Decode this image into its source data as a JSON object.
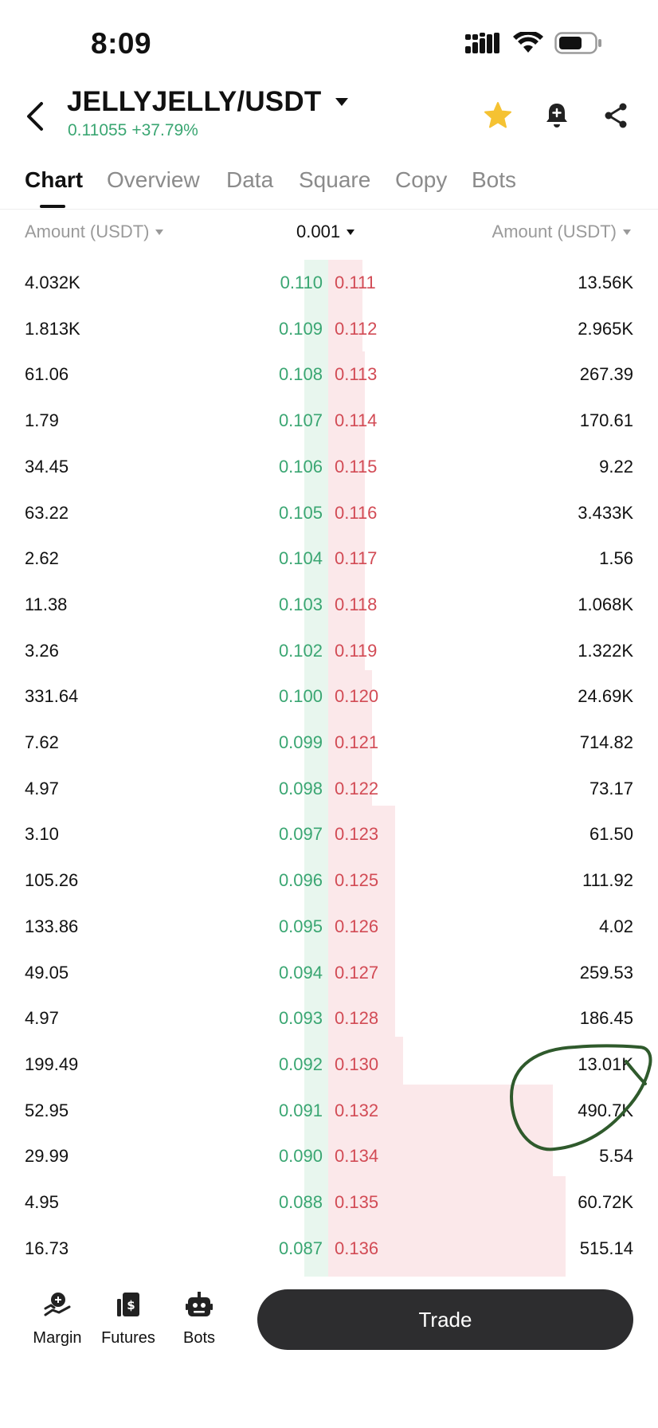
{
  "status_bar": {
    "time": "8:09"
  },
  "header": {
    "pair": "JELLYJELLY/USDT",
    "last_price": "0.11055",
    "change": "+37.79%"
  },
  "tabs": [
    {
      "label": "Chart",
      "active": true
    },
    {
      "label": "Overview",
      "active": false
    },
    {
      "label": "Data",
      "active": false
    },
    {
      "label": "Square",
      "active": false
    },
    {
      "label": "Copy",
      "active": false
    },
    {
      "label": "Bots",
      "active": false
    }
  ],
  "order_book": {
    "left_label": "Amount (USDT)",
    "right_label": "Amount (USDT)",
    "precision": "0.001",
    "rows": [
      {
        "bid_amount": "4.032K",
        "bid_price": "0.110",
        "ask_price": "0.111",
        "ask_amount": "13.56K"
      },
      {
        "bid_amount": "1.813K",
        "bid_price": "0.109",
        "ask_price": "0.112",
        "ask_amount": "2.965K"
      },
      {
        "bid_amount": "61.06",
        "bid_price": "0.108",
        "ask_price": "0.113",
        "ask_amount": "267.39"
      },
      {
        "bid_amount": "1.79",
        "bid_price": "0.107",
        "ask_price": "0.114",
        "ask_amount": "170.61"
      },
      {
        "bid_amount": "34.45",
        "bid_price": "0.106",
        "ask_price": "0.115",
        "ask_amount": "9.22"
      },
      {
        "bid_amount": "63.22",
        "bid_price": "0.105",
        "ask_price": "0.116",
        "ask_amount": "3.433K"
      },
      {
        "bid_amount": "2.62",
        "bid_price": "0.104",
        "ask_price": "0.117",
        "ask_amount": "1.56"
      },
      {
        "bid_amount": "11.38",
        "bid_price": "0.103",
        "ask_price": "0.118",
        "ask_amount": "1.068K"
      },
      {
        "bid_amount": "3.26",
        "bid_price": "0.102",
        "ask_price": "0.119",
        "ask_amount": "1.322K"
      },
      {
        "bid_amount": "331.64",
        "bid_price": "0.100",
        "ask_price": "0.120",
        "ask_amount": "24.69K"
      },
      {
        "bid_amount": "7.62",
        "bid_price": "0.099",
        "ask_price": "0.121",
        "ask_amount": "714.82"
      },
      {
        "bid_amount": "4.97",
        "bid_price": "0.098",
        "ask_price": "0.122",
        "ask_amount": "73.17"
      },
      {
        "bid_amount": "3.10",
        "bid_price": "0.097",
        "ask_price": "0.123",
        "ask_amount": "61.50"
      },
      {
        "bid_amount": "105.26",
        "bid_price": "0.096",
        "ask_price": "0.125",
        "ask_amount": "111.92"
      },
      {
        "bid_amount": "133.86",
        "bid_price": "0.095",
        "ask_price": "0.126",
        "ask_amount": "4.02"
      },
      {
        "bid_amount": "49.05",
        "bid_price": "0.094",
        "ask_price": "0.127",
        "ask_amount": "259.53"
      },
      {
        "bid_amount": "4.97",
        "bid_price": "0.093",
        "ask_price": "0.128",
        "ask_amount": "186.45"
      },
      {
        "bid_amount": "199.49",
        "bid_price": "0.092",
        "ask_price": "0.130",
        "ask_amount": "13.01K"
      },
      {
        "bid_amount": "52.95",
        "bid_price": "0.091",
        "ask_price": "0.132",
        "ask_amount": "490.7K"
      },
      {
        "bid_amount": "29.99",
        "bid_price": "0.090",
        "ask_price": "0.134",
        "ask_amount": "5.54"
      },
      {
        "bid_amount": "4.95",
        "bid_price": "0.088",
        "ask_price": "0.135",
        "ask_amount": "60.72K"
      },
      {
        "bid_amount": "16.73",
        "bid_price": "0.087",
        "ask_price": "0.136",
        "ask_amount": "515.14"
      }
    ]
  },
  "bottom_bar": {
    "items": [
      {
        "label": "Margin",
        "icon": "margin-icon"
      },
      {
        "label": "Futures",
        "icon": "futures-icon"
      },
      {
        "label": "Bots",
        "icon": "bots-icon"
      }
    ],
    "trade_label": "Trade"
  },
  "colors": {
    "bid": "#3aa672",
    "ask": "#d24b55",
    "bid_depth": "#e8f6ee",
    "ask_depth": "#fbe8ea",
    "favorite": "#f5c232",
    "annotation": "#2f5a2c"
  }
}
